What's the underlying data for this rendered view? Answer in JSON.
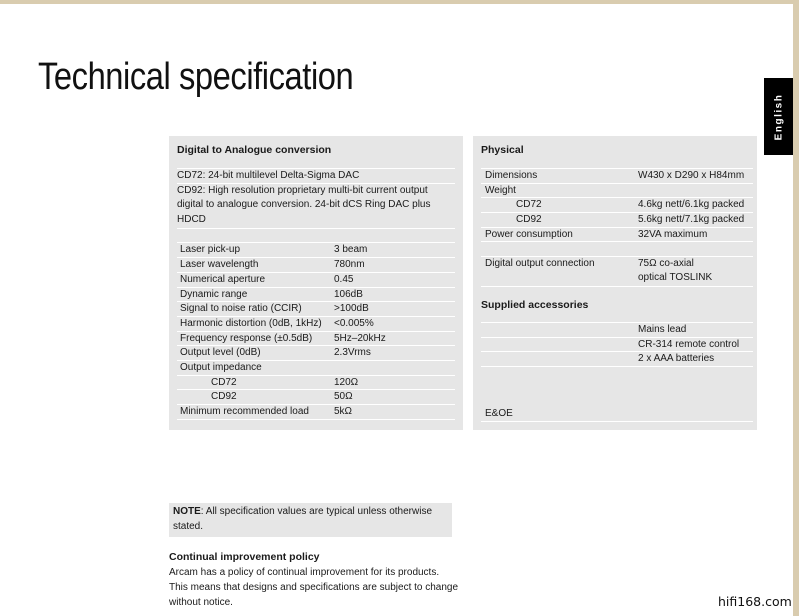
{
  "title": "Technical specification",
  "language_tab": "English",
  "dac": {
    "heading": "Digital to Analogue conversion",
    "cd72": "CD72: 24-bit multilevel Delta-Sigma DAC",
    "cd92": "CD92: High resolution proprietary multi-bit current output digital to analogue conversion. 24-bit dCS Ring DAC plus HDCD",
    "rows": [
      {
        "label": "Laser pick-up",
        "value": "3 beam"
      },
      {
        "label": "Laser wavelength",
        "value": "780nm"
      },
      {
        "label": "Numerical aperture",
        "value": "0.45"
      },
      {
        "label": "Dynamic range",
        "value": "106dB"
      },
      {
        "label": "Signal to noise ratio (CCIR)",
        "value": ">100dB"
      },
      {
        "label": "Harmonic distortion (0dB, 1kHz)",
        "value": "<0.005%"
      },
      {
        "label": "Frequency response (±0.5dB)",
        "value": "5Hz–20kHz"
      },
      {
        "label": "Output level (0dB)",
        "value": "2.3Vrms"
      },
      {
        "label": "Output impedance",
        "value": ""
      },
      {
        "label": "CD72",
        "value": "120Ω"
      },
      {
        "label": "CD92",
        "value": "50Ω"
      },
      {
        "label": "Minimum recommended load",
        "value": "5kΩ"
      }
    ]
  },
  "physical": {
    "heading": "Physical",
    "rows": [
      {
        "label": "Dimensions",
        "value": "W430 x D290 x H84mm"
      },
      {
        "label": "Weight",
        "value": ""
      },
      {
        "label": "CD72",
        "value": "4.6kg nett/6.1kg packed"
      },
      {
        "label": "CD92",
        "value": "5.6kg nett/7.1kg packed"
      },
      {
        "label": "Power consumption",
        "value": "32VA maximum"
      }
    ],
    "digital_output": {
      "label": "Digital output connection",
      "value1": "75Ω co-axial",
      "value2": "optical TOSLINK"
    }
  },
  "accessories": {
    "heading": "Supplied accessories",
    "items": [
      "Mains lead",
      "CR-314 remote control",
      "2 x AAA batteries"
    ]
  },
  "eoe": "E&OE",
  "note": {
    "bold": "NOTE",
    "text": ": All specification values are typical unless otherwise stated."
  },
  "policy": {
    "heading": "Continual improvement policy",
    "text": "Arcam has a policy of continual improvement for its products. This means that designs and specifications are subject to change without notice."
  },
  "watermark": "hifi168.com"
}
